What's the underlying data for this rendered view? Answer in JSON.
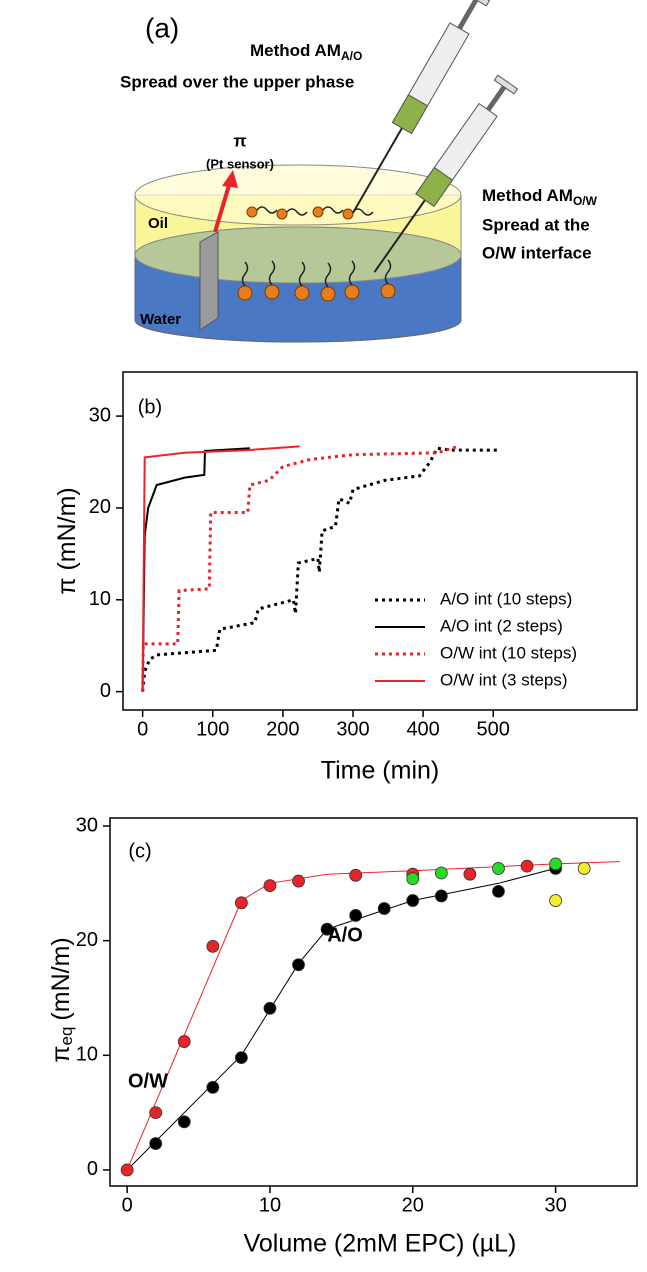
{
  "diagram": {
    "label": "(a)",
    "method_ao": {
      "text": "Method AM",
      "sub": "A/O",
      "desc": "Spread over the upper phase"
    },
    "sensor": {
      "symbol": "π",
      "text": "(Pt sensor)"
    },
    "method_ow": {
      "text": "Method AM",
      "sub": "O/W",
      "desc_lines": [
        "Spread at the",
        "O/W interface"
      ]
    },
    "oil": "Oil",
    "water": "Water"
  },
  "chart_data": [
    {
      "type": "line",
      "title": "(b)",
      "x_label": "Time (min)",
      "y_label": "π (mN/m)",
      "xlim": [
        -28,
        705
      ],
      "ylim": [
        -2,
        34.8
      ],
      "xticks": [
        0,
        100,
        200,
        300,
        400,
        500
      ],
      "yticks": [
        0,
        10,
        20,
        30
      ],
      "legend": "lower right",
      "series": [
        {
          "name": "A/O int (10 steps)",
          "color": "#000000",
          "line_style": "dotted",
          "x": [
            0,
            3,
            10,
            20,
            105,
            110,
            160,
            165,
            215,
            218,
            222,
            250,
            252,
            256,
            275,
            280,
            295,
            300,
            345,
            395,
            410,
            420,
            440,
            510
          ],
          "values": [
            0,
            2.2,
            3.5,
            4,
            4.5,
            6.8,
            7.5,
            9,
            10,
            8.5,
            14,
            14.5,
            13,
            17.5,
            18,
            21,
            20.5,
            22,
            23,
            23.5,
            25,
            26.5,
            26.3,
            26.3
          ]
        },
        {
          "name": "A/O int (2 steps)",
          "color": "#000000",
          "line_style": "solid",
          "x": [
            0,
            3,
            8,
            20,
            60,
            88,
            89,
            153
          ],
          "values": [
            0,
            17,
            20,
            22.5,
            23.3,
            23.6,
            26.2,
            26.5
          ]
        },
        {
          "name": "O/W int (10 steps)",
          "color": "#e8242a",
          "line_style": "dotted",
          "x": [
            0,
            1,
            50,
            52,
            95,
            97,
            150,
            153,
            180,
            200,
            240,
            300,
            420,
            450
          ],
          "values": [
            0,
            5.2,
            5.2,
            11,
            11.2,
            19.5,
            19.5,
            22.5,
            23,
            24.5,
            25.3,
            25.8,
            26,
            26.7
          ]
        },
        {
          "name": "O/W int (3 steps)",
          "color": "#e8242a",
          "line_style": "solid",
          "x": [
            0,
            3,
            60,
            150,
            224
          ],
          "values": [
            0,
            25.5,
            26,
            26.3,
            26.7
          ]
        }
      ]
    },
    {
      "type": "scatter",
      "title": "(c)",
      "x_label": "Volume (2mM EPC) (µL)",
      "y_label": "π",
      "y_label_sub": "eq",
      "y_label_unit": "(mN/m)",
      "xlim": [
        -1.2,
        35.7
      ],
      "ylim": [
        -1.4,
        30.7
      ],
      "xticks": [
        0,
        10,
        20,
        30
      ],
      "yticks": [
        0,
        10,
        20,
        30
      ],
      "annotations": [
        {
          "text": "O/W",
          "color": "#e8242a"
        },
        {
          "text": "A/O",
          "color": "#000000"
        }
      ],
      "series": [
        {
          "color": "#e8242a",
          "mode": "line",
          "x": [
            0,
            8,
            10,
            14,
            20,
            30,
            34.5
          ],
          "values": [
            0,
            23.5,
            25,
            25.8,
            26.1,
            26.7,
            26.9
          ]
        },
        {
          "color": "#000000",
          "mode": "line",
          "x": [
            0,
            8,
            12,
            14,
            20,
            26,
            30
          ],
          "values": [
            0,
            10,
            18,
            21,
            23.5,
            25,
            26.3
          ]
        },
        {
          "color": "#e8242a",
          "mode": "markers",
          "x": [
            0,
            2,
            4,
            6,
            8,
            10,
            12,
            16,
            20,
            24,
            28
          ],
          "values": [
            0,
            5,
            11.2,
            19.5,
            23.3,
            24.8,
            25.2,
            25.7,
            25.8,
            25.8,
            26.5
          ]
        },
        {
          "color": "#000000",
          "mode": "markers",
          "x": [
            2,
            4,
            6,
            8,
            10,
            12,
            14,
            16,
            18,
            20,
            22,
            26,
            30
          ],
          "values": [
            2.3,
            4.2,
            7.2,
            9.8,
            14.1,
            17.9,
            21,
            22.2,
            22.8,
            23.5,
            23.9,
            24.3,
            26.3
          ]
        },
        {
          "color": "#22dd22",
          "mode": "markers",
          "x": [
            20,
            22,
            26,
            30
          ],
          "values": [
            25.4,
            25.9,
            26.3,
            26.7
          ]
        },
        {
          "color": "#f5ec2a",
          "mode": "markers",
          "x": [
            30,
            32
          ],
          "values": [
            23.5,
            26.3
          ]
        }
      ]
    }
  ]
}
